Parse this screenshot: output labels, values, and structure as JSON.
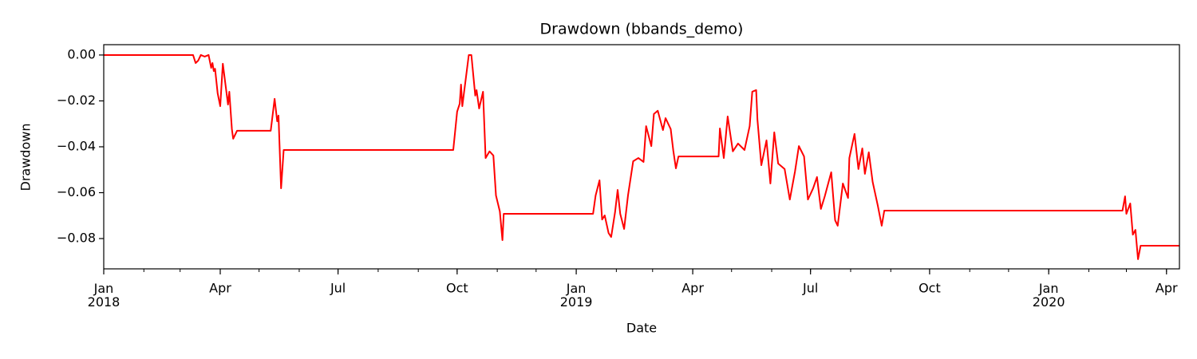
{
  "chart_data": {
    "type": "line",
    "title": "Drawdown (bbands_demo)",
    "xlabel": "Date",
    "ylabel": "Drawdown",
    "xlim": [
      "2018-01-01",
      "2020-04-11"
    ],
    "ylim": [
      -0.0932,
      0.0045
    ],
    "yticks": [
      {
        "value": 0,
        "label": "0.00"
      },
      {
        "value": -0.02,
        "label": "−0.02"
      },
      {
        "value": -0.04,
        "label": "−0.04"
      },
      {
        "value": -0.06,
        "label": "−0.06"
      },
      {
        "value": -0.08,
        "label": "−0.08"
      }
    ],
    "xticks": [
      {
        "value": "2018-01-01",
        "label": "Jan\n2018"
      },
      {
        "value": "2018-04-01",
        "label": "Apr"
      },
      {
        "value": "2018-07-01",
        "label": "Jul"
      },
      {
        "value": "2018-10-01",
        "label": "Oct"
      },
      {
        "value": "2019-01-01",
        "label": "Jan\n2019"
      },
      {
        "value": "2019-04-01",
        "label": "Apr"
      },
      {
        "value": "2019-07-01",
        "label": "Jul"
      },
      {
        "value": "2019-10-01",
        "label": "Oct"
      },
      {
        "value": "2020-01-01",
        "label": "Jan\n2020"
      },
      {
        "value": "2020-04-01",
        "label": "Apr"
      }
    ],
    "x": [
      "2018-01-01",
      "2018-03-11",
      "2018-03-13",
      "2018-03-15",
      "2018-03-17",
      "2018-03-20",
      "2018-03-23",
      "2018-03-25",
      "2018-03-26",
      "2018-03-27",
      "2018-03-28",
      "2018-03-30",
      "2018-04-01",
      "2018-04-03",
      "2018-04-07",
      "2018-04-08",
      "2018-04-10",
      "2018-04-11",
      "2018-04-14",
      "2018-05-10",
      "2018-05-13",
      "2018-05-15",
      "2018-05-16",
      "2018-05-18",
      "2018-05-20",
      "2018-09-28",
      "2018-10-01",
      "2018-10-03",
      "2018-10-04",
      "2018-10-05",
      "2018-10-10",
      "2018-10-12",
      "2018-10-15",
      "2018-10-16",
      "2018-10-18",
      "2018-10-21",
      "2018-10-23",
      "2018-10-26",
      "2018-10-29",
      "2018-10-31",
      "2018-11-03",
      "2018-11-05",
      "2018-11-06",
      "2019-01-14",
      "2019-01-16",
      "2019-01-19",
      "2019-01-21",
      "2019-01-23",
      "2019-01-26",
      "2019-01-28",
      "2019-01-31",
      "2019-02-02",
      "2019-02-04",
      "2019-02-07",
      "2019-02-10",
      "2019-02-14",
      "2019-02-18",
      "2019-02-22",
      "2019-02-24",
      "2019-02-28",
      "2019-03-02",
      "2019-03-05",
      "2019-03-09",
      "2019-03-11",
      "2019-03-15",
      "2019-03-17",
      "2019-03-19",
      "2019-03-21",
      "2019-04-21",
      "2019-04-22",
      "2019-04-25",
      "2019-04-28",
      "2019-05-02",
      "2019-05-06",
      "2019-05-11",
      "2019-05-15",
      "2019-05-17",
      "2019-05-20",
      "2019-05-21",
      "2019-05-24",
      "2019-05-28",
      "2019-05-31",
      "2019-06-03",
      "2019-06-06",
      "2019-06-11",
      "2019-06-15",
      "2019-06-19",
      "2019-06-22",
      "2019-06-26",
      "2019-06-29",
      "2019-07-03",
      "2019-07-06",
      "2019-07-09",
      "2019-07-12",
      "2019-07-17",
      "2019-07-20",
      "2019-07-22",
      "2019-07-26",
      "2019-07-30",
      "2019-07-31",
      "2019-08-04",
      "2019-08-07",
      "2019-08-10",
      "2019-08-12",
      "2019-08-15",
      "2019-08-18",
      "2019-08-22",
      "2019-08-25",
      "2019-08-27",
      "2020-02-27",
      "2020-02-29",
      "2020-03-01",
      "2020-03-04",
      "2020-03-06",
      "2020-03-08",
      "2020-03-10",
      "2020-03-12",
      "2020-04-11"
    ],
    "series": [
      {
        "name": "Drawdown",
        "color": "#ff0000",
        "values": [
          0,
          0,
          -0.0035,
          -0.0024,
          0,
          -0.0007,
          0,
          -0.0056,
          -0.0035,
          -0.007,
          -0.006,
          -0.0167,
          -0.0223,
          -0.0038,
          -0.0216,
          -0.016,
          -0.0323,
          -0.0365,
          -0.033,
          -0.033,
          -0.0191,
          -0.0289,
          -0.0264,
          -0.0581,
          -0.0414,
          -0.0414,
          -0.0247,
          -0.0212,
          -0.0129,
          -0.0223,
          0,
          0,
          -0.0177,
          -0.0153,
          -0.0233,
          -0.016,
          -0.0449,
          -0.042,
          -0.0438,
          -0.0612,
          -0.0682,
          -0.0807,
          -0.0692,
          -0.0692,
          -0.0612,
          -0.0546,
          -0.0717,
          -0.0699,
          -0.0776,
          -0.0793,
          -0.0685,
          -0.0588,
          -0.0692,
          -0.0758,
          -0.0612,
          -0.0463,
          -0.0449,
          -0.0466,
          -0.031,
          -0.0397,
          -0.0257,
          -0.0243,
          -0.0327,
          -0.0275,
          -0.0323,
          -0.0417,
          -0.0494,
          -0.0442,
          -0.0442,
          -0.032,
          -0.0449,
          -0.0268,
          -0.042,
          -0.0386,
          -0.0414,
          -0.031,
          -0.016,
          -0.0153,
          -0.0282,
          -0.048,
          -0.0372,
          -0.056,
          -0.0337,
          -0.0473,
          -0.0497,
          -0.063,
          -0.0508,
          -0.0397,
          -0.0442,
          -0.063,
          -0.0581,
          -0.0532,
          -0.0671,
          -0.0616,
          -0.0511,
          -0.072,
          -0.0744,
          -0.056,
          -0.0623,
          -0.0449,
          -0.0344,
          -0.0497,
          -0.0407,
          -0.0518,
          -0.0424,
          -0.0553,
          -0.0657,
          -0.0744,
          -0.0678,
          -0.0678,
          -0.0616,
          -0.0692,
          -0.0647,
          -0.0783,
          -0.0762,
          -0.089,
          -0.0831,
          -0.0831
        ]
      }
    ]
  }
}
